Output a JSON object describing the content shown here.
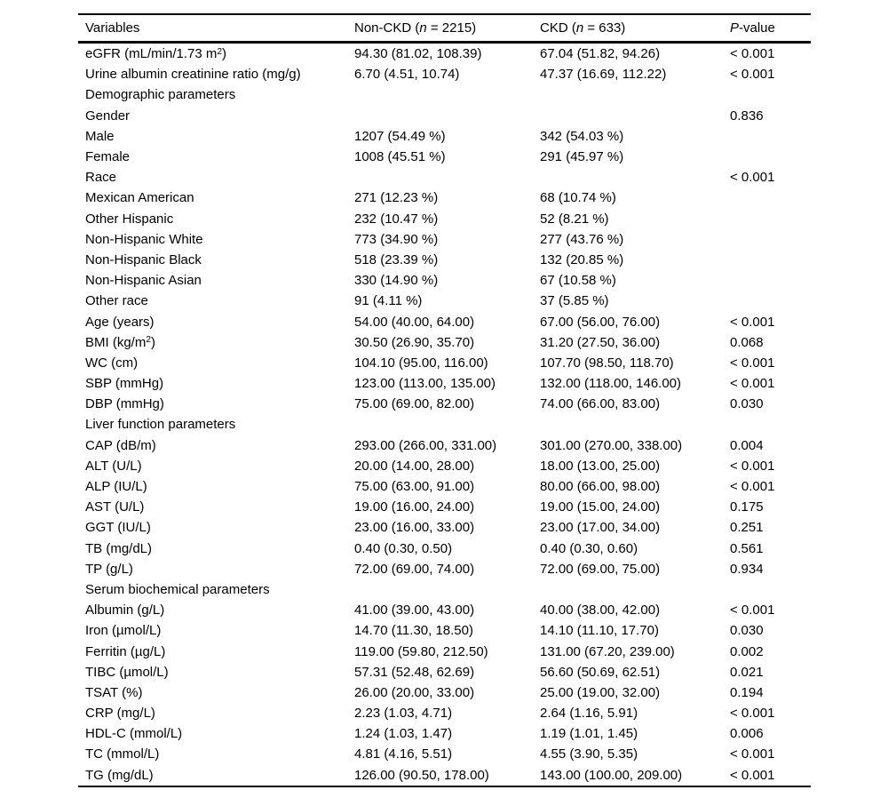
{
  "table": {
    "columns": {
      "variables": "Variables",
      "non_ckd": {
        "pre": "Non-CKD (",
        "italic": "n",
        "post": " = 2215)"
      },
      "ckd": {
        "pre": "CKD (",
        "italic": "n",
        "post": " = 633)"
      },
      "p_value": {
        "pre": "",
        "italic": "P",
        "post": "-value"
      }
    },
    "rows": [
      {
        "variable": [
          {
            "t": "eGFR (mL/min/1.73 m"
          },
          {
            "t": "2",
            "sup": true
          },
          {
            "t": ")"
          }
        ],
        "non_ckd": "94.30 (81.02, 108.39)",
        "ckd": "67.04 (51.82, 94.26)",
        "p_value": "< 0.001"
      },
      {
        "variable": "Urine albumin creatinine ratio (mg/g)",
        "non_ckd": "6.70 (4.51, 10.74)",
        "ckd": "47.37 (16.69, 112.22)",
        "p_value": "< 0.001"
      },
      {
        "variable": "Demographic parameters",
        "non_ckd": "",
        "ckd": "",
        "p_value": ""
      },
      {
        "variable": "Gender",
        "non_ckd": "",
        "ckd": "",
        "p_value": "0.836"
      },
      {
        "variable": "Male",
        "non_ckd": "1207 (54.49 %)",
        "ckd": "342 (54.03 %)",
        "p_value": ""
      },
      {
        "variable": "Female",
        "non_ckd": "1008 (45.51 %)",
        "ckd": "291 (45.97 %)",
        "p_value": ""
      },
      {
        "variable": "Race",
        "non_ckd": "",
        "ckd": "",
        "p_value": "< 0.001"
      },
      {
        "variable": "Mexican American",
        "non_ckd": "271 (12.23 %)",
        "ckd": "68 (10.74 %)",
        "p_value": ""
      },
      {
        "variable": "Other Hispanic",
        "non_ckd": "232 (10.47 %)",
        "ckd": "52 (8.21 %)",
        "p_value": ""
      },
      {
        "variable": "Non-Hispanic White",
        "non_ckd": "773 (34.90 %)",
        "ckd": "277 (43.76 %)",
        "p_value": ""
      },
      {
        "variable": "Non-Hispanic Black",
        "non_ckd": "518 (23.39 %)",
        "ckd": "132 (20.85 %)",
        "p_value": ""
      },
      {
        "variable": "Non-Hispanic Asian",
        "non_ckd": "330 (14.90 %)",
        "ckd": "67 (10.58 %)",
        "p_value": ""
      },
      {
        "variable": "Other race",
        "non_ckd": "91 (4.11 %)",
        "ckd": "37 (5.85 %)",
        "p_value": ""
      },
      {
        "variable": "Age (years)",
        "non_ckd": "54.00 (40.00, 64.00)",
        "ckd": "67.00 (56.00, 76.00)",
        "p_value": "< 0.001"
      },
      {
        "variable": [
          {
            "t": "BMI (kg/m"
          },
          {
            "t": "2",
            "sup": true
          },
          {
            "t": ")"
          }
        ],
        "non_ckd": "30.50 (26.90, 35.70)",
        "ckd": "31.20 (27.50, 36.00)",
        "p_value": "0.068"
      },
      {
        "variable": "WC (cm)",
        "non_ckd": "104.10 (95.00, 116.00)",
        "ckd": "107.70 (98.50, 118.70)",
        "p_value": "< 0.001"
      },
      {
        "variable": "SBP (mmHg)",
        "non_ckd": "123.00 (113.00, 135.00)",
        "ckd": "132.00 (118.00, 146.00)",
        "p_value": "< 0.001"
      },
      {
        "variable": "DBP (mmHg)",
        "non_ckd": "75.00 (69.00, 82.00)",
        "ckd": "74.00 (66.00, 83.00)",
        "p_value": "0.030"
      },
      {
        "variable": "Liver function parameters",
        "non_ckd": "",
        "ckd": "",
        "p_value": ""
      },
      {
        "variable": "CAP (dB/m)",
        "non_ckd": "293.00 (266.00, 331.00)",
        "ckd": "301.00 (270.00, 338.00)",
        "p_value": "0.004"
      },
      {
        "variable": "ALT (U/L)",
        "non_ckd": "20.00 (14.00, 28.00)",
        "ckd": "18.00 (13.00, 25.00)",
        "p_value": "< 0.001"
      },
      {
        "variable": "ALP (IU/L)",
        "non_ckd": "75.00 (63.00, 91.00)",
        "ckd": "80.00 (66.00, 98.00)",
        "p_value": "< 0.001"
      },
      {
        "variable": "AST (U/L)",
        "non_ckd": "19.00 (16.00, 24.00)",
        "ckd": "19.00 (15.00, 24.00)",
        "p_value": "0.175"
      },
      {
        "variable": "GGT (IU/L)",
        "non_ckd": "23.00 (16.00, 33.00)",
        "ckd": "23.00 (17.00, 34.00)",
        "p_value": "0.251"
      },
      {
        "variable": "TB (mg/dL)",
        "non_ckd": "0.40 (0.30, 0.50)",
        "ckd": "0.40 (0.30, 0.60)",
        "p_value": "0.561"
      },
      {
        "variable": "TP (g/L)",
        "non_ckd": "72.00 (69.00, 74.00)",
        "ckd": "72.00 (69.00, 75.00)",
        "p_value": "0.934"
      },
      {
        "variable": "Serum biochemical parameters",
        "non_ckd": "",
        "ckd": "",
        "p_value": ""
      },
      {
        "variable": "Albumin (g/L)",
        "non_ckd": "41.00 (39.00, 43.00)",
        "ckd": "40.00 (38.00, 42.00)",
        "p_value": "< 0.001"
      },
      {
        "variable": "Iron (µmol/L)",
        "non_ckd": "14.70 (11.30, 18.50)",
        "ckd": "14.10 (11.10, 17.70)",
        "p_value": "0.030"
      },
      {
        "variable": "Ferritin (µg/L)",
        "non_ckd": "119.00 (59.80, 212.50)",
        "ckd": "131.00 (67.20, 239.00)",
        "p_value": "0.002"
      },
      {
        "variable": "TIBC (µmol/L)",
        "non_ckd": "57.31 (52.48, 62.69)",
        "ckd": "56.60 (50.69, 62.51)",
        "p_value": "0.021"
      },
      {
        "variable": "TSAT (%)",
        "non_ckd": "26.00 (20.00, 33.00)",
        "ckd": "25.00 (19.00, 32.00)",
        "p_value": "0.194"
      },
      {
        "variable": "CRP (mg/L)",
        "non_ckd": "2.23 (1.03, 4.71)",
        "ckd": "2.64 (1.16, 5.91)",
        "p_value": "< 0.001"
      },
      {
        "variable": "HDL-C (mmol/L)",
        "non_ckd": "1.24 (1.03, 1.47)",
        "ckd": "1.19 (1.01, 1.45)",
        "p_value": "0.006"
      },
      {
        "variable": "TC (mmol/L)",
        "non_ckd": "4.81 (4.16, 5.51)",
        "ckd": "4.55 (3.90, 5.35)",
        "p_value": "< 0.001"
      },
      {
        "variable": "TG (mg/dL)",
        "non_ckd": "126.00 (90.50, 178.00)",
        "ckd": "143.00 (100.00, 209.00)",
        "p_value": "< 0.001"
      }
    ]
  }
}
